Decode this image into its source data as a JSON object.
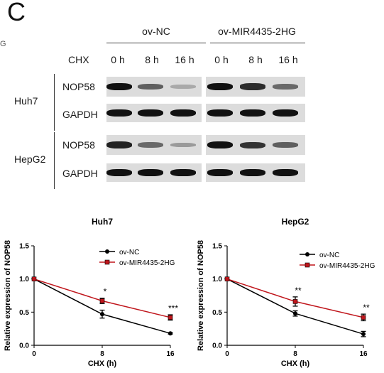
{
  "panel_label": "C",
  "stray_mark": "G",
  "blot": {
    "groups": [
      "ov-NC",
      "ov-MIR4435-2HG"
    ],
    "treatment_label": "CHX",
    "times": [
      "0 h",
      "8 h",
      "16 h",
      "0 h",
      "8 h",
      "16 h"
    ],
    "cell_lines": [
      "Huh7",
      "HepG2"
    ],
    "proteins": [
      "NOP58",
      "GAPDH",
      "NOP58",
      "GAPDH"
    ],
    "band_intensity": {
      "huh7_nop58": [
        1.0,
        0.55,
        0.12,
        1.0,
        0.85,
        0.5
      ],
      "huh7_gapdh": [
        1.0,
        1.0,
        1.0,
        1.0,
        1.0,
        1.0
      ],
      "hepg2_nop58": [
        0.9,
        0.5,
        0.2,
        1.0,
        0.8,
        0.55
      ],
      "hepg2_gapdh": [
        1.0,
        1.0,
        1.0,
        1.0,
        1.0,
        1.0
      ]
    }
  },
  "chart_data": [
    {
      "type": "line",
      "title": "Huh7",
      "xlabel": "CHX (h)",
      "ylabel": "Relative expression of NOP58",
      "x": [
        0,
        8,
        16
      ],
      "xticks": [
        "0",
        "8",
        "16"
      ],
      "yticks": [
        "0.0",
        "0.5",
        "1.0",
        "1.5"
      ],
      "ylim": [
        0,
        1.5
      ],
      "legend_position": "top-right",
      "series": [
        {
          "name": "ov-NC",
          "values": [
            1.0,
            0.47,
            0.18
          ],
          "errors": [
            0,
            0.06,
            0.01
          ],
          "color": "#000000",
          "marker": "circle"
        },
        {
          "name": "ov-MIR4435-2HG",
          "values": [
            1.0,
            0.67,
            0.42
          ],
          "errors": [
            0,
            0.04,
            0.04
          ],
          "color": "#c0161c",
          "marker": "square"
        }
      ],
      "annotations": [
        {
          "x": 8,
          "text": "*"
        },
        {
          "x": 16,
          "text": "***"
        }
      ]
    },
    {
      "type": "line",
      "title": "HepG2",
      "xlabel": "CHX (h)",
      "ylabel": "Relative expression of NOP58",
      "x": [
        0,
        8,
        16
      ],
      "xticks": [
        "0",
        "8",
        "16"
      ],
      "yticks": [
        "0.0",
        "0.5",
        "1.0",
        "1.5"
      ],
      "ylim": [
        0,
        1.5
      ],
      "legend_position": "top-right",
      "series": [
        {
          "name": "ov-NC",
          "values": [
            1.0,
            0.48,
            0.17
          ],
          "errors": [
            0,
            0.04,
            0.04
          ],
          "color": "#000000",
          "marker": "circle"
        },
        {
          "name": "ov-MIR4435-2HG",
          "values": [
            1.0,
            0.66,
            0.42
          ],
          "errors": [
            0,
            0.07,
            0.05
          ],
          "color": "#c0161c",
          "marker": "square"
        }
      ],
      "annotations": [
        {
          "x": 8,
          "text": "**"
        },
        {
          "x": 16,
          "text": "**"
        }
      ]
    }
  ]
}
